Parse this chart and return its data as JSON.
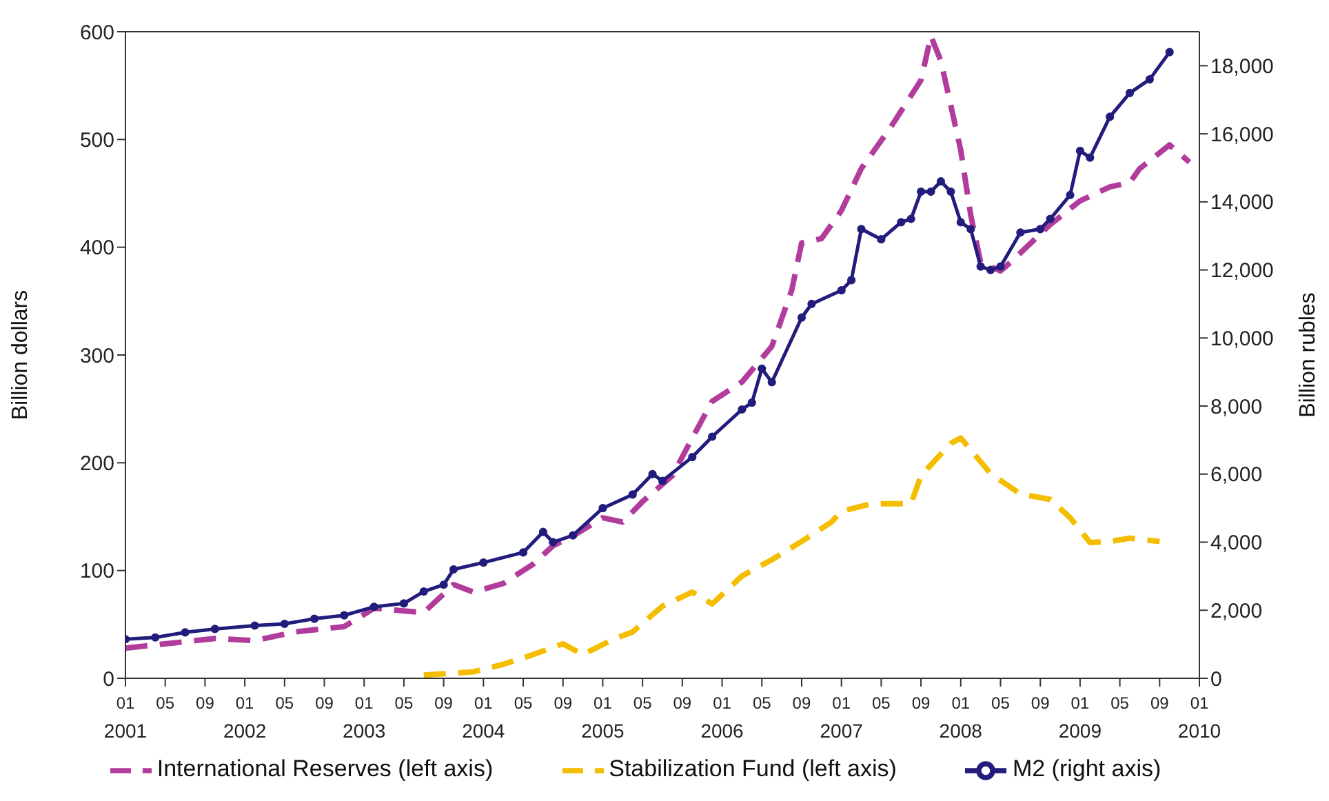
{
  "chart_data": {
    "type": "line",
    "xlabel": null,
    "ylabel": "Billion dollars",
    "y2label": "Billion rubles",
    "xlim": [
      "2001-01",
      "2010-01"
    ],
    "xticks": [
      {
        "value": "2001-01",
        "label": "01\n2001"
      },
      {
        "value": "2001-05",
        "label": "05"
      },
      {
        "value": "2001-09",
        "label": "09"
      },
      {
        "value": "2002-01",
        "label": "01\n2002"
      },
      {
        "value": "2002-05",
        "label": "05"
      },
      {
        "value": "2002-09",
        "label": "09"
      },
      {
        "value": "2003-01",
        "label": "01\n2003"
      },
      {
        "value": "2003-05",
        "label": "05"
      },
      {
        "value": "2003-09",
        "label": "09"
      },
      {
        "value": "2004-01",
        "label": "01\n2004"
      },
      {
        "value": "2004-05",
        "label": "05"
      },
      {
        "value": "2004-09",
        "label": "09"
      },
      {
        "value": "2005-01",
        "label": "01\n2005"
      },
      {
        "value": "2005-05",
        "label": "05"
      },
      {
        "value": "2005-09",
        "label": "09"
      },
      {
        "value": "2006-01",
        "label": "01\n2006"
      },
      {
        "value": "2006-05",
        "label": "05"
      },
      {
        "value": "2006-09",
        "label": "09"
      },
      {
        "value": "2007-01",
        "label": "01\n2007"
      },
      {
        "value": "2007-05",
        "label": "05"
      },
      {
        "value": "2007-09",
        "label": "09"
      },
      {
        "value": "2008-01",
        "label": "01\n2008"
      },
      {
        "value": "2008-05",
        "label": "05"
      },
      {
        "value": "2008-09",
        "label": "09"
      },
      {
        "value": "2009-01",
        "label": "01\n2009"
      },
      {
        "value": "2009-05",
        "label": "05"
      },
      {
        "value": "2009-09",
        "label": "09"
      },
      {
        "value": "2010-01",
        "label": "01\n2010"
      }
    ],
    "ylim": [
      0,
      600
    ],
    "yticks": [
      0,
      100,
      200,
      300,
      400,
      500,
      600
    ],
    "y2lim": [
      0,
      19000
    ],
    "y2ticks": [
      0,
      {
        "value": 2000,
        "label": "2,000"
      },
      {
        "value": 4000,
        "label": "4,000"
      },
      {
        "value": 6000,
        "label": "6,000"
      },
      {
        "value": 8000,
        "label": "8,000"
      },
      {
        "value": 10000,
        "label": "10,000"
      },
      {
        "value": 12000,
        "label": "12,000"
      },
      {
        "value": 14000,
        "label": "14,000"
      },
      {
        "value": 16000,
        "label": "16,000"
      },
      {
        "value": 18000,
        "label": "18,000"
      }
    ],
    "legend": "bottom",
    "series": [
      {
        "name": "International Reserves (left axis)",
        "color": "#b23c9c",
        "line_style": "dashed",
        "marker": "none",
        "x": [
          "2001-01",
          "2001-04",
          "2001-06",
          "2001-10",
          "2002-02",
          "2002-06",
          "2002-11",
          "2003-02",
          "2003-07",
          "2003-10",
          "2003-12",
          "2004-03",
          "2004-06",
          "2004-08",
          "2004-10",
          "2005-01",
          "2005-03",
          "2005-05",
          "2005-08",
          "2005-10",
          "2005-12",
          "2006-01",
          "2006-03",
          "2006-06",
          "2006-08",
          "2006-09",
          "2006-11",
          "2007-01",
          "2007-03",
          "2007-06",
          "2007-09",
          "2007-10",
          "2007-11",
          "2008-01",
          "2008-02",
          "2008-03",
          "2008-05",
          "2008-06",
          "2008-10",
          "2009-01",
          "2009-04",
          "2009-06",
          "2009-07",
          "2009-10",
          "2009-12"
        ],
        "values": [
          28,
          31,
          33,
          37,
          35,
          43,
          48,
          65,
          61,
          87,
          80,
          88,
          106,
          123,
          132,
          149,
          145,
          164,
          188,
          223,
          257,
          263,
          275,
          308,
          360,
          404,
          408,
          434,
          473,
          512,
          555,
          596,
          573,
          490,
          430,
          386,
          378,
          386,
          421,
          443,
          456,
          460,
          473,
          495,
          479
        ]
      },
      {
        "name": "Stabilization Fund (left axis)",
        "color": "#f5bd00",
        "line_style": "dashed",
        "marker": "none",
        "x": [
          "2003-07",
          "2003-12",
          "2004-03",
          "2004-06",
          "2004-09",
          "2004-11",
          "2005-02",
          "2005-04",
          "2005-07",
          "2005-10",
          "2005-12",
          "2006-03",
          "2006-06",
          "2006-09",
          "2006-12",
          "2007-01",
          "2007-04",
          "2007-08",
          "2007-09",
          "2007-12",
          "2008-01",
          "2008-04",
          "2008-07",
          "2008-10",
          "2008-12",
          "2009-02",
          "2009-04",
          "2009-06",
          "2009-09"
        ],
        "values": [
          3,
          6,
          13,
          22,
          32,
          22,
          36,
          43,
          67,
          80,
          69,
          95,
          110,
          127,
          145,
          155,
          162,
          162,
          188,
          218,
          223,
          190,
          171,
          166,
          149,
          126,
          127,
          130,
          127
        ]
      },
      {
        "name": "M2 (right axis)",
        "color": "#221c7c",
        "axis": "y2",
        "line_style": "solid",
        "marker": "circle",
        "x": [
          "2001-01",
          "2001-04",
          "2001-07",
          "2001-10",
          "2002-02",
          "2002-05",
          "2002-08",
          "2002-11",
          "2003-02",
          "2003-05",
          "2003-07",
          "2003-09",
          "2003-10",
          "2004-01",
          "2004-05",
          "2004-07",
          "2004-08",
          "2004-10",
          "2005-01",
          "2005-04",
          "2005-06",
          "2005-07",
          "2005-10",
          "2005-12",
          "2006-03",
          "2006-04",
          "2006-05",
          "2006-06",
          "2006-09",
          "2006-10",
          "2007-01",
          "2007-02",
          "2007-03",
          "2007-05",
          "2007-07",
          "2007-08",
          "2007-09",
          "2007-10",
          "2007-11",
          "2007-12",
          "2008-01",
          "2008-02",
          "2008-03",
          "2008-04",
          "2008-05",
          "2008-07",
          "2008-09",
          "2008-10",
          "2008-12",
          "2009-01",
          "2009-02",
          "2009-04",
          "2009-06",
          "2009-08",
          "2009-10"
        ],
        "values": [
          1150,
          1200,
          1350,
          1450,
          1550,
          1600,
          1750,
          1850,
          2100,
          2200,
          2550,
          2750,
          3200,
          3400,
          3700,
          4300,
          4000,
          4200,
          5000,
          5400,
          6000,
          5800,
          6500,
          7100,
          7900,
          8100,
          9100,
          8700,
          10600,
          11000,
          11400,
          11700,
          13200,
          12900,
          13400,
          13500,
          14300,
          14300,
          14600,
          14300,
          13400,
          13200,
          12100,
          12000,
          12100,
          13100,
          13200,
          13500,
          14200,
          15500,
          15300,
          16500,
          17200,
          17600,
          18400
        ]
      }
    ]
  }
}
